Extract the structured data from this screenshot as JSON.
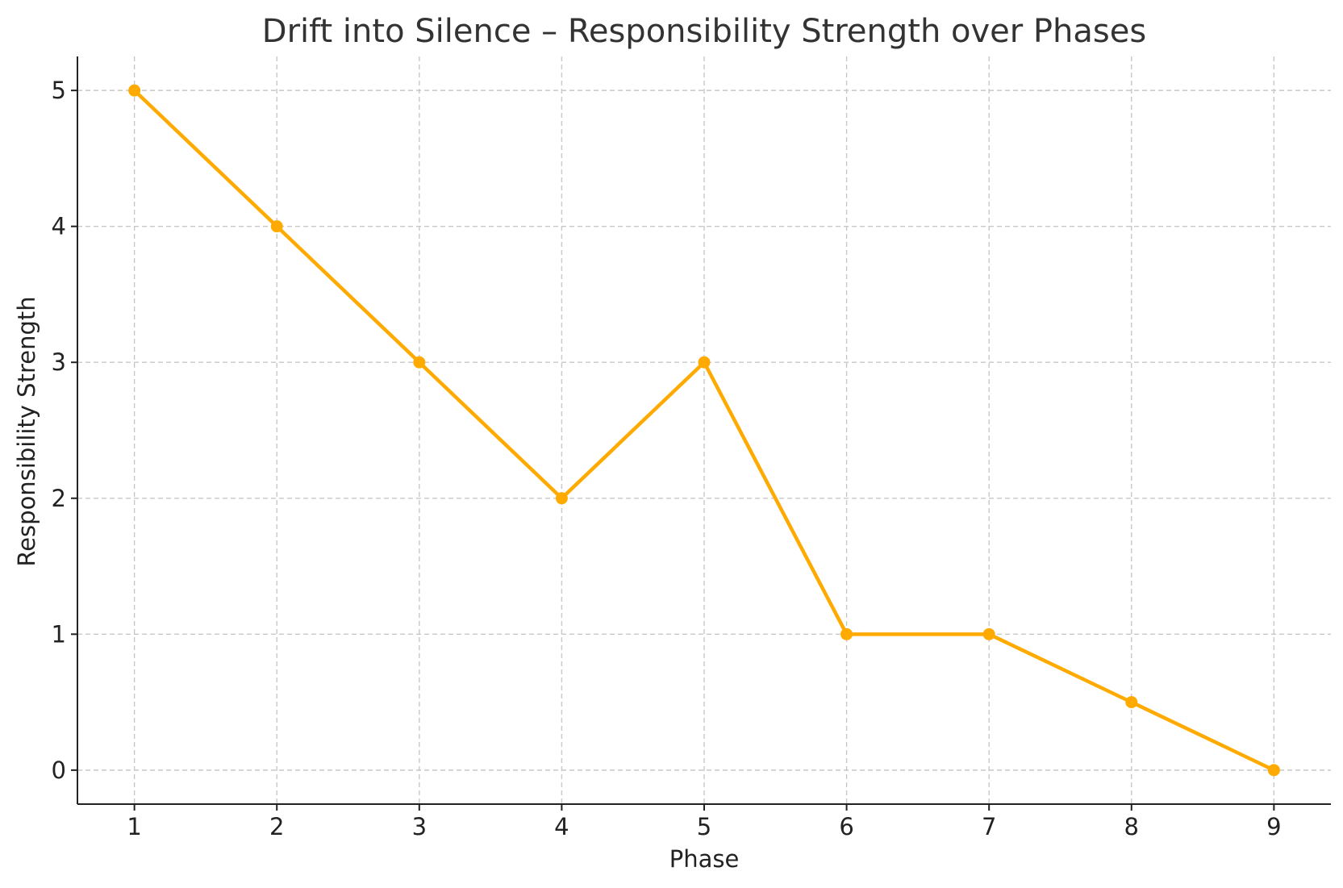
{
  "chart_data": {
    "type": "line",
    "title": "Drift into Silence – Responsibility Strength over Phases",
    "xlabel": "Phase",
    "ylabel": "Responsibility Strength",
    "x": [
      1,
      2,
      3,
      4,
      5,
      6,
      7,
      8,
      9
    ],
    "series": [
      {
        "values": [
          5,
          4,
          3,
          2,
          3,
          1,
          1,
          0.5,
          0
        ],
        "color": "#FFAA00",
        "marker": "circle"
      }
    ],
    "xticks": [
      "1",
      "2",
      "3",
      "4",
      "5",
      "6",
      "7",
      "8",
      "9"
    ],
    "yticks": [
      "0",
      "1",
      "2",
      "3",
      "4",
      "5"
    ],
    "xlim": [
      0.6,
      9.4
    ],
    "ylim": [
      -0.25,
      5.25
    ],
    "grid": true,
    "grid_style": "dashed"
  }
}
